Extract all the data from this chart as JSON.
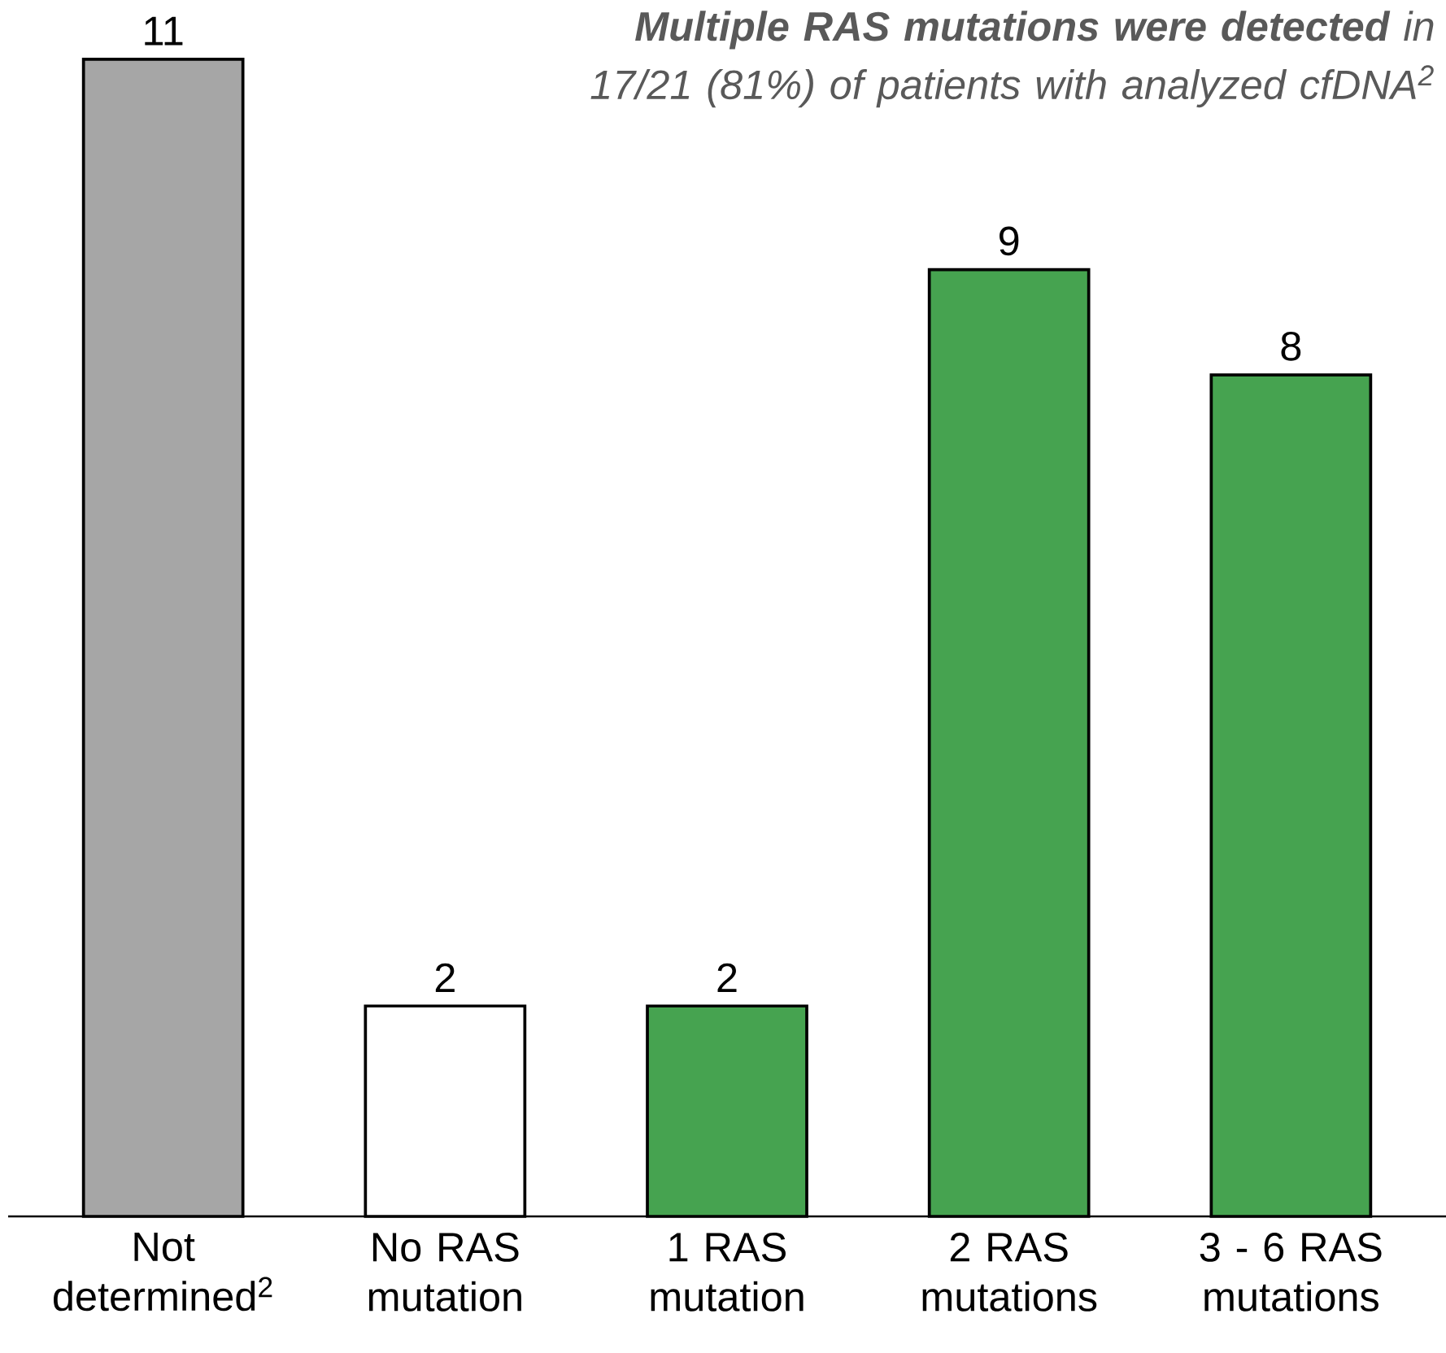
{
  "chart_data": {
    "type": "bar",
    "annotations": [
      "**Multiple RAS mutations were detected** in 17/21 (81%) of patients with analyzed cfDNA$^{2}$"
    ],
    "categories": [
      "Not determined$^{2}$",
      "No RAS mutation",
      "1 RAS mutation",
      "2 RAS mutations",
      "3 - 6 RAS mutations"
    ],
    "values": [
      11,
      2,
      2,
      9,
      8
    ],
    "colors": [
      "#a6a6a6",
      "#ffffff",
      "#46a350",
      "#46a350",
      "#46a350"
    ],
    "data_labels": true
  }
}
